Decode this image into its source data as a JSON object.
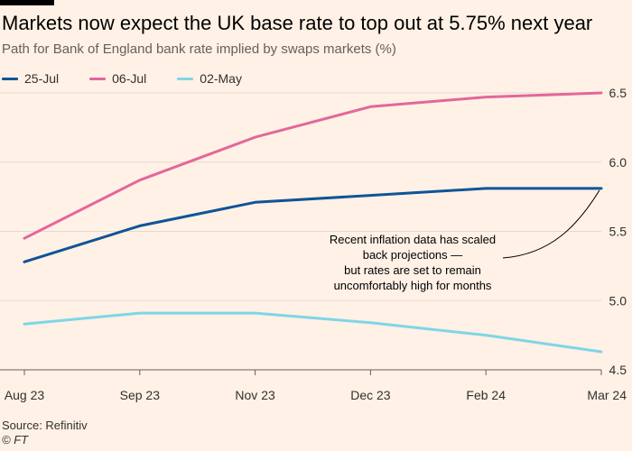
{
  "header": {
    "title": "Markets now expect the UK base rate to top out at 5.75% next year",
    "subtitle": "Path for Bank of England bank rate implied by swaps markets (%)"
  },
  "footer": {
    "source": "Source: Refinitiv",
    "copyright": "© FT"
  },
  "chart_data": {
    "type": "line",
    "title": "Markets now expect the UK base rate to top out at 5.75% next year",
    "subtitle": "Path for Bank of England bank rate implied by swaps markets (%)",
    "xlabel": "",
    "ylabel": "",
    "categories": [
      "Aug 23",
      "Sep 23",
      "Nov 23",
      "Dec 23",
      "Feb 24",
      "Mar 24"
    ],
    "ylim": [
      4.5,
      6.5
    ],
    "yticks": [
      4.5,
      5.0,
      5.5,
      6.0,
      6.5
    ],
    "ytick_labels": [
      "4.5",
      "5.0",
      "5.5",
      "6.0",
      "6.5"
    ],
    "grid": true,
    "legend_position": "top-left",
    "series": [
      {
        "name": "25-Jul",
        "color": "#0f5499",
        "values": [
          5.28,
          5.54,
          5.71,
          5.76,
          5.81,
          5.81
        ]
      },
      {
        "name": "06-Jul",
        "color": "#e3679b",
        "values": [
          5.45,
          5.87,
          6.18,
          6.4,
          6.47,
          6.5
        ]
      },
      {
        "name": "02-May",
        "color": "#7ed6e6",
        "values": [
          4.83,
          4.91,
          4.91,
          4.84,
          4.75,
          4.63
        ]
      }
    ],
    "annotation": {
      "lines": [
        "Recent inflation data has scaled",
        "back projections —",
        "but rates are set to remain",
        "uncomfortably high for months"
      ],
      "points_to": {
        "x": "Mar 24",
        "y": 5.81
      }
    }
  }
}
